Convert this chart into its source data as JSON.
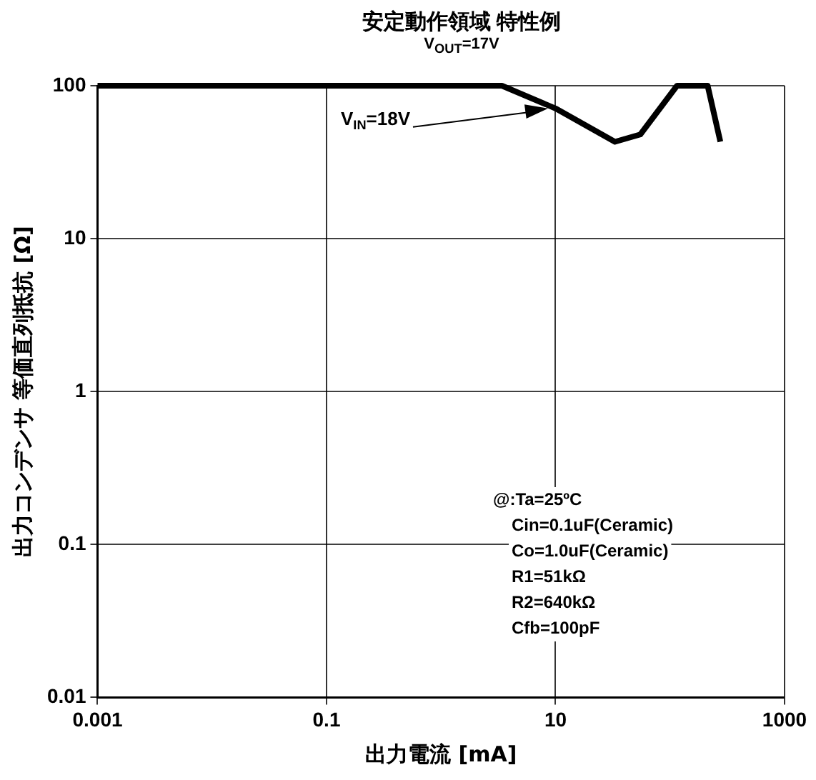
{
  "chart_data": {
    "type": "line",
    "title": "安定動作領域 特性例",
    "subtitle": "V$_{OUT}$=17V",
    "xlabel": "出力電流 [mA]",
    "ylabel": "出力コンデンサ 等価直列抵抗 [Ω]",
    "log": "xy",
    "xlim": [
      0.001,
      1000
    ],
    "xticks": [
      0.001,
      0.1,
      10,
      1000
    ],
    "ylim": [
      0.01,
      100
    ],
    "yticks": [
      0.01,
      0.1,
      1,
      10,
      100
    ],
    "grid": true,
    "legend": false,
    "marker": "none",
    "line_style": "solid",
    "series": [
      {
        "color": "#000000",
        "x": [
          0.001,
          3.4,
          10,
          33,
          55,
          115,
          213,
          275
        ],
        "values": [
          100,
          100,
          71,
          43,
          48,
          100,
          100,
          43
        ]
      }
    ],
    "annotations": [
      {
        "text": "V$_{IN}$=18V",
        "x": 8.6,
        "y": 71
      },
      "@:Ta=25ºC",
      "Cin=0.1uF(Ceramic)",
      "Co=1.0uF(Ceramic)",
      "R1=51kΩ",
      "R2=640kΩ",
      "Cfb=100pF"
    ]
  }
}
